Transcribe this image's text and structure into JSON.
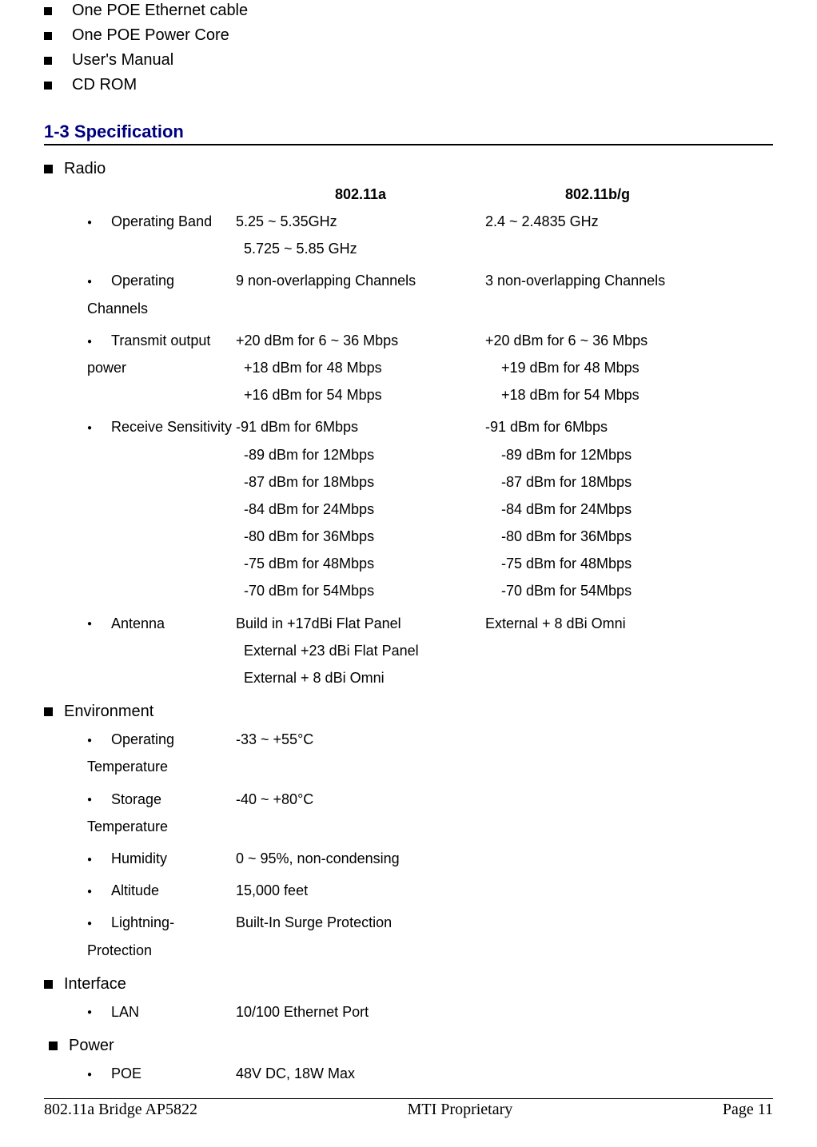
{
  "package_items": [
    "One POE Ethernet cable",
    "One POE Power Core",
    "User's Manual",
    "CD ROM"
  ],
  "heading_spec": "1-3 Specification",
  "sections": {
    "radio": {
      "title": "Radio",
      "col_header_a": "802.11a",
      "col_header_b": "802.11b/g",
      "rows": [
        {
          "label": "Operating Band",
          "a": [
            "5.25 ~ 5.35GHz",
            "5.725 ~ 5.85 GHz"
          ],
          "b": [
            "2.4 ~ 2.4835 GHz"
          ]
        },
        {
          "label": "Operating Channels",
          "a": [
            "9 non-overlapping Channels"
          ],
          "b": [
            "3 non-overlapping Channels"
          ]
        },
        {
          "label": "Transmit output power",
          "a": [
            "+20 dBm for 6 ~ 36 Mbps",
            "+18 dBm for 48 Mbps",
            "+16 dBm for 54 Mbps"
          ],
          "b": [
            "+20 dBm for 6 ~ 36 Mbps",
            "+19 dBm for 48 Mbps",
            "+18 dBm for 54 Mbps"
          ]
        },
        {
          "label": "Receive Sensitivity",
          "a": [
            "-91 dBm for 6Mbps",
            "-89 dBm for 12Mbps",
            "-87 dBm for 18Mbps",
            "-84 dBm for 24Mbps",
            "-80 dBm for 36Mbps",
            "-75 dBm for 48Mbps",
            "-70 dBm for 54Mbps"
          ],
          "b": [
            "-91 dBm for 6Mbps",
            "-89 dBm for 12Mbps",
            "-87 dBm for 18Mbps",
            "-84 dBm for 24Mbps",
            "-80 dBm for 36Mbps",
            "-75 dBm for 48Mbps",
            "-70 dBm for 54Mbps"
          ]
        },
        {
          "label": "Antenna",
          "a": [
            "Build in +17dBi Flat Panel",
            "External +23 dBi Flat Panel",
            "External  + 8 dBi Omni"
          ],
          "b": [
            "External  + 8 dBi Omni"
          ]
        }
      ]
    },
    "environment": {
      "title": "Environment",
      "rows": [
        {
          "label": "Operating Temperature",
          "a": [
            "-33 ~ +55°C"
          ]
        },
        {
          "label": "Storage Temperature",
          "a": [
            "-40 ~ +80°C"
          ]
        },
        {
          "label": "Humidity",
          "a": [
            "0 ~ 95%, non-condensing"
          ]
        },
        {
          "label": "Altitude",
          "a": [
            "15,000 feet"
          ]
        },
        {
          "label": "Lightning-Protection",
          "a": [
            "Built-In Surge Protection"
          ]
        }
      ]
    },
    "interface": {
      "title": "Interface",
      "rows": [
        {
          "label": "LAN",
          "a": [
            "10/100 Ethernet Port"
          ]
        }
      ]
    },
    "power": {
      "title": "Power",
      "rows": [
        {
          "label": "POE",
          "a": [
            "48V DC, 18W Max"
          ]
        }
      ]
    }
  },
  "footer": {
    "left": "802.11a Bridge  AP5822",
    "center": "MTI Proprietary",
    "right": "Page 11"
  }
}
